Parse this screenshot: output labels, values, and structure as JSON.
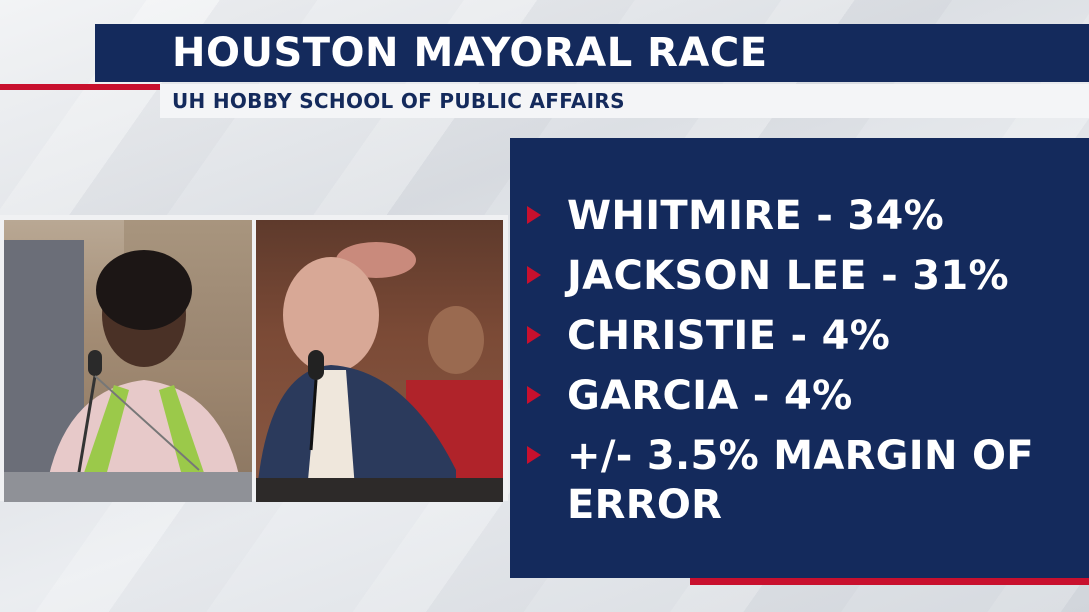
{
  "graphic": {
    "title": "HOUSTON MAYORAL RACE",
    "subtitle": "UH HOBBY SCHOOL OF PUBLIC AFFAIRS"
  },
  "results": [
    {
      "text": "WHITMIRE - 34%"
    },
    {
      "text": "JACKSON LEE - 31%"
    },
    {
      "text": "CHRISTIE - 4%"
    },
    {
      "text": "GARCIA - 4%"
    },
    {
      "text": "+/- 3.5% MARGIN OF ERROR"
    }
  ],
  "colors": {
    "navy": "#142a5c",
    "accent_red": "#c8102e",
    "subtitle_bg": "#f4f5f7"
  },
  "icons": {
    "bullet": "play-triangle-icon"
  }
}
